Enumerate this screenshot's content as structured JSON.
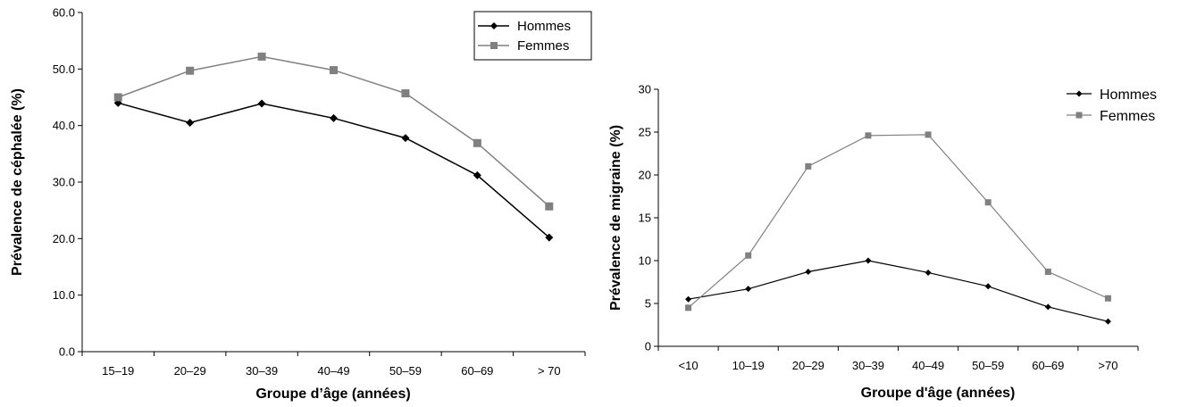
{
  "chart_data": [
    {
      "type": "line",
      "categories": [
        "15–19",
        "20–29",
        "30–39",
        "40–49",
        "50–59",
        "60–69",
        "> 70"
      ],
      "xlabel": "Groupe d’âge (années)",
      "ylabel": "Prévalence de céphalée (%)",
      "ylim": [
        0,
        60
      ],
      "yticks": [
        "0.0",
        "10.0",
        "20.0",
        "30.0",
        "40.0",
        "50.0",
        "60.0"
      ],
      "grid": false,
      "legend": "top-right",
      "series": [
        {
          "name": "Hommes",
          "marker": "diamond",
          "color": "#000000",
          "values": [
            44.0,
            40.5,
            43.9,
            41.3,
            37.8,
            31.2,
            20.2
          ]
        },
        {
          "name": "Femmes",
          "marker": "square",
          "color": "#808080",
          "values": [
            45.0,
            49.7,
            52.2,
            49.8,
            45.7,
            36.9,
            25.7
          ]
        }
      ]
    },
    {
      "type": "line",
      "categories": [
        "<10",
        "10–19",
        "20–29",
        "30–39",
        "40–49",
        "50–59",
        "60–69",
        ">70"
      ],
      "xlabel": "Groupe d'âge (années)",
      "ylabel": "Prévalence de migraine (%)",
      "ylim": [
        0,
        30
      ],
      "yticks": [
        "0",
        "5",
        "10",
        "15",
        "20",
        "25",
        "30"
      ],
      "grid": false,
      "legend": "top-right",
      "series": [
        {
          "name": "Hommes",
          "marker": "diamond",
          "color": "#000000",
          "values": [
            5.5,
            6.7,
            8.7,
            10.0,
            8.6,
            7.0,
            4.6,
            2.9
          ]
        },
        {
          "name": "Femmes",
          "marker": "square",
          "color": "#808080",
          "values": [
            4.5,
            10.6,
            21.0,
            24.6,
            24.7,
            16.8,
            8.7,
            5.6
          ]
        }
      ]
    }
  ]
}
